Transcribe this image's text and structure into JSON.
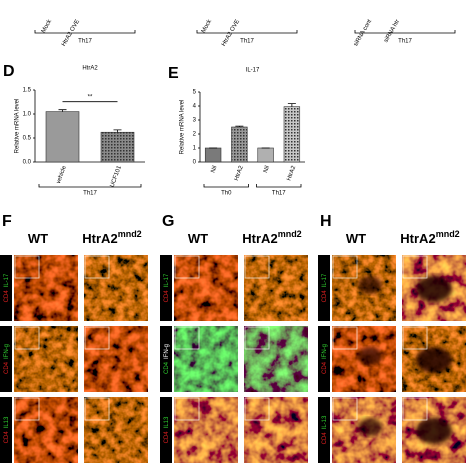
{
  "top_strip": {
    "labels": [
      "Mock",
      "HtrA2 OVE",
      "Mock",
      "HtrA2 OVE",
      "siRNA cont",
      "siRNA htr"
    ],
    "groups": [
      "Th17",
      "Th17",
      "Th17"
    ]
  },
  "chart_data": [
    {
      "type": "bar",
      "label": "D",
      "title": "HtrA2",
      "y_label": "Relative mRNA level",
      "categories": [
        "vehicle",
        "UCF101"
      ],
      "values": [
        1.05,
        0.62
      ],
      "errors": [
        0.04,
        0.05
      ],
      "colors": [
        "#9a9a9a",
        "#8a8a8a"
      ],
      "ylim": [
        0,
        1.5
      ],
      "yticks": [
        {
          "value": 0,
          "label": "0.0"
        },
        {
          "value": 0.5,
          "label": "0.5"
        },
        {
          "value": 1,
          "label": "1.0"
        },
        {
          "value": 1.5,
          "label": "1.5"
        }
      ],
      "annotation": "**",
      "groups": [
        "Th17"
      ]
    },
    {
      "type": "bar",
      "label": "E",
      "title": "IL-17",
      "y_label": "Relative mRNA level",
      "categories": [
        "Nil",
        "HtrA2",
        "Nil",
        "HtrA2"
      ],
      "values": [
        1,
        2.5,
        1,
        3.95
      ],
      "errors": [
        0,
        0.06,
        0,
        0.22
      ],
      "colors": [
        "#7a7a7a",
        "#9a9a9a",
        "#b0b0b0",
        "#c8c8c8"
      ],
      "ylim": [
        0,
        5
      ],
      "yticks": [
        0,
        1,
        2,
        3,
        4,
        5
      ],
      "groups": [
        "Th0",
        "Th17"
      ]
    }
  ],
  "panels": [
    {
      "label": "F",
      "columns": [
        "WT",
        "HtrA2"
      ],
      "superscript": "mnd2",
      "rows": [
        [
          "CD4",
          "IL-17"
        ],
        [
          "CD4",
          "IFN-g"
        ],
        [
          "CD4",
          "IL13"
        ]
      ]
    },
    {
      "label": "G",
      "columns": [
        "WT",
        "HtrA2"
      ],
      "superscript": "mnd2",
      "rows": [
        [
          "CD4",
          "IL-17"
        ],
        [
          "CD4",
          "IFN-g"
        ],
        [
          "CD4",
          "IL13"
        ]
      ]
    },
    {
      "label": "H",
      "columns": [
        "WT",
        "HtrA2"
      ],
      "superscript": "mnd2",
      "rows": [
        [
          "CD4",
          "IL-17"
        ],
        [
          "CD4",
          "IFN-g"
        ],
        [
          "CD4",
          "IL-13"
        ]
      ]
    }
  ]
}
